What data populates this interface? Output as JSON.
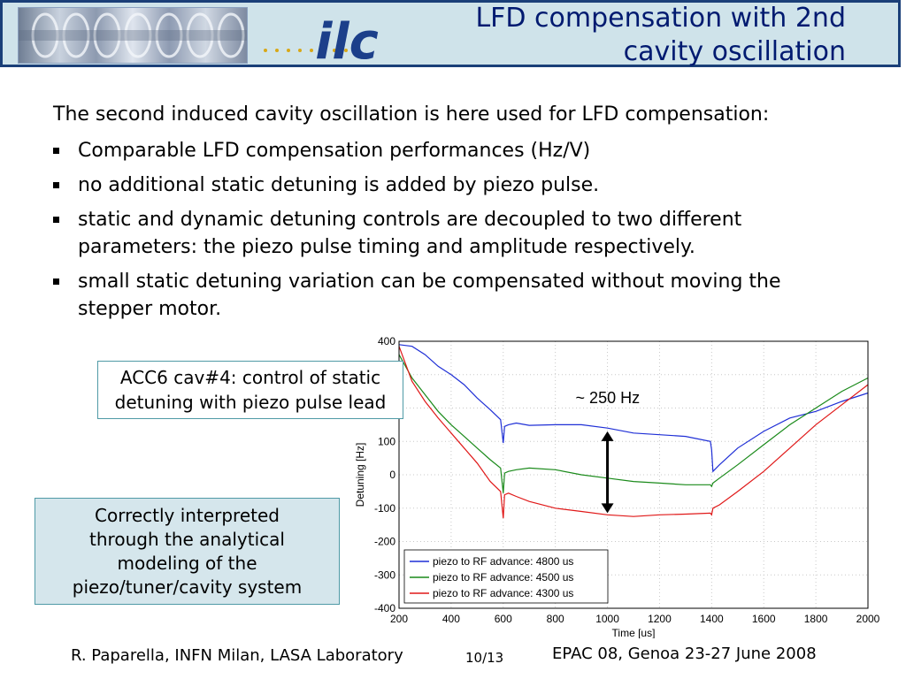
{
  "header": {
    "title": "LFD compensation with 2nd\ncavity oscillation",
    "logo_text": "ilc",
    "colors": {
      "band": "#cfe3ea",
      "border": "#1a3f78",
      "title": "#001a70",
      "logo": "#1c3f8a",
      "dots": "#d8a817"
    }
  },
  "body": {
    "intro": "The second induced cavity oscillation is here used for LFD compensation:",
    "bullets": [
      "Comparable LFD compensation performances (Hz/V)",
      "no additional static detuning is added by piezo pulse.",
      "static and dynamic detuning controls are decoupled to two different parameters: the piezo pulse timing and amplitude respectively.",
      "small static detuning variation can be compensated without moving the stepper motor."
    ]
  },
  "callouts": {
    "acc6": [
      "ACC6 cav#4: control of static",
      "detuning with piezo pulse lead"
    ],
    "interp": [
      "Correctly interpreted",
      "through the analytical",
      "modeling of the",
      "piezo/tuner/cavity system"
    ]
  },
  "chart_data": {
    "type": "line",
    "xlabel": "Time [us]",
    "ylabel": "Detuning [Hz]",
    "xlim": [
      200,
      2000
    ],
    "ylim": [
      -400,
      400
    ],
    "xticks": [
      200,
      400,
      600,
      800,
      1000,
      1200,
      1400,
      1600,
      1800,
      2000
    ],
    "yticks": [
      400,
      300,
      200,
      100,
      0,
      -100,
      -200,
      -300,
      -400
    ],
    "grid": true,
    "legend_position": "bottom-left",
    "annotation": "~ 250 Hz",
    "annotation_arrow_x": 1000,
    "annotation_arrow_y": [
      130,
      -115
    ],
    "series": [
      {
        "name": "piezo to RF advance: 4800 us",
        "color": "#1f2fd6",
        "x": [
          200,
          250,
          300,
          350,
          400,
          450,
          500,
          550,
          590,
          600,
          605,
          620,
          650,
          700,
          800,
          900,
          1000,
          1100,
          1200,
          1300,
          1395,
          1400,
          1405,
          1430,
          1500,
          1600,
          1700,
          1800,
          1900,
          2000
        ],
        "y": [
          390,
          385,
          360,
          325,
          300,
          270,
          230,
          195,
          165,
          95,
          145,
          150,
          155,
          148,
          150,
          150,
          140,
          125,
          120,
          115,
          100,
          75,
          10,
          30,
          80,
          130,
          170,
          190,
          220,
          245
        ]
      },
      {
        "name": "piezo to RF advance: 4500 us",
        "color": "#1a8a1a",
        "x": [
          200,
          250,
          300,
          350,
          400,
          450,
          500,
          550,
          590,
          600,
          605,
          620,
          650,
          700,
          800,
          900,
          1000,
          1100,
          1200,
          1300,
          1395,
          1400,
          1405,
          1430,
          1500,
          1600,
          1700,
          1800,
          1900,
          2000
        ],
        "y": [
          360,
          290,
          240,
          190,
          150,
          115,
          80,
          45,
          20,
          -55,
          5,
          10,
          15,
          20,
          15,
          0,
          -10,
          -20,
          -25,
          -30,
          -30,
          -35,
          -25,
          -10,
          30,
          90,
          150,
          200,
          250,
          290
        ]
      },
      {
        "name": "piezo to RF advance: 4300 us",
        "color": "#e01818",
        "x": [
          200,
          250,
          300,
          350,
          400,
          450,
          500,
          550,
          590,
          600,
          605,
          620,
          650,
          700,
          800,
          900,
          1000,
          1100,
          1200,
          1300,
          1395,
          1400,
          1405,
          1430,
          1500,
          1600,
          1700,
          1800,
          1900,
          2000
        ],
        "y": [
          385,
          280,
          220,
          170,
          125,
          80,
          35,
          -20,
          -50,
          -130,
          -60,
          -55,
          -65,
          -80,
          -100,
          -110,
          -120,
          -125,
          -120,
          -118,
          -115,
          -120,
          -100,
          -90,
          -50,
          10,
          80,
          150,
          210,
          270
        ]
      }
    ]
  },
  "footer": {
    "author": "R. Paparella, INFN Milan, LASA Laboratory",
    "page": "10/13",
    "conference": "EPAC 08, Genoa 23-27 June 2008"
  }
}
